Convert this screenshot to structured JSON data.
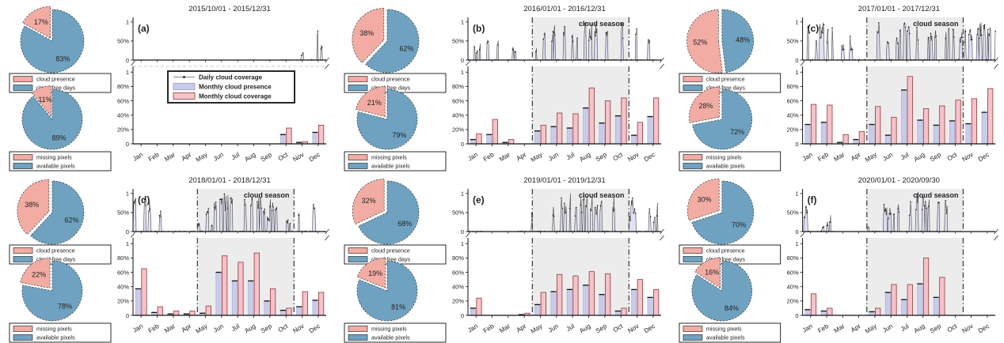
{
  "figure_name": "cloud coverage statistics figure",
  "colors": {
    "bar_presence_fill": "#c9cbe9",
    "bar_presence_edge": "#9aa0cc",
    "bar_presence_cap": "#111111",
    "bar_coverage_fill": "#f5c3c9",
    "bar_coverage_edge": "#9c4a4a",
    "pie_pink": "#f2aca3",
    "pie_blue": "#6fa2c0",
    "pie_outline": "#333333",
    "season_shade": "#ececec",
    "season_text": "#e8372e",
    "daily_line": "#3a3a3a",
    "daily_fill": "#d7d9f1",
    "axis": "#111111",
    "title_text": "#333333",
    "dashed_gap_line": "#c9c9c9"
  },
  "axes": {
    "y_ticks_top": [
      "1",
      "50%",
      "0"
    ],
    "y_ticks_bottom": [
      "1",
      "80%",
      "60%",
      "40%",
      "20%",
      "0"
    ],
    "cloud_season_label": "cloud season"
  },
  "main_legend": {
    "items": [
      {
        "type": "line",
        "label": "Daily cloud coverage"
      },
      {
        "type": "presence",
        "label": "Monthly cloud presence"
      },
      {
        "type": "coverage",
        "label": "Monthly cloud coverage"
      }
    ]
  },
  "pie_legends": {
    "cloud": [
      "cloud presence",
      "cloud-free days"
    ],
    "pixels": [
      "missing pixels",
      "available pixels"
    ]
  },
  "chart_data": [
    {
      "panel": "(a)",
      "title": "2015/10/01 - 2015/12/31",
      "type": "bar",
      "cloud_season": false,
      "daily_seed": 11,
      "pies": [
        {
          "name": "cloud",
          "slices": [
            {
              "label": "cloud presence",
              "value": 17
            },
            {
              "label": "cloud-free days",
              "value": 83
            }
          ]
        },
        {
          "name": "pixels",
          "slices": [
            {
              "label": "missing pixels",
              "value": 11
            },
            {
              "label": "available pixels",
              "value": 89
            }
          ]
        }
      ],
      "monthly": {
        "categories": [
          "Jan",
          "Feb",
          "Mar",
          "Apr",
          "May",
          "Jun",
          "Jul",
          "Aug",
          "Sep",
          "Oct",
          "Nov",
          "Dec"
        ],
        "series": [
          {
            "name": "Monthly cloud presence",
            "values": [
              0,
              0,
              0,
              0,
              0,
              0,
              0,
              0,
              0,
              13,
              2,
              16
            ]
          },
          {
            "name": "Monthly cloud coverage",
            "values": [
              0,
              0,
              0,
              0,
              0,
              0,
              0,
              0,
              0,
              22,
              3,
              26
            ]
          }
        ],
        "ylim": [
          0,
          1
        ]
      }
    },
    {
      "panel": "(b)",
      "title": "2016/01/01 - 2016/12/31",
      "type": "bar",
      "cloud_season": true,
      "cloud_season_months": [
        "May",
        "Oct"
      ],
      "daily_seed": 22,
      "pies": [
        {
          "name": "cloud",
          "slices": [
            {
              "label": "cloud presence",
              "value": 38
            },
            {
              "label": "cloud-free days",
              "value": 62
            }
          ]
        },
        {
          "name": "pixels",
          "slices": [
            {
              "label": "missing pixels",
              "value": 21
            },
            {
              "label": "available pixels",
              "value": 79
            }
          ]
        }
      ],
      "monthly": {
        "categories": [
          "Jan",
          "Feb",
          "Mar",
          "Apr",
          "May",
          "Jun",
          "Jul",
          "Aug",
          "Sep",
          "Oct",
          "Nov",
          "Dec"
        ],
        "series": [
          {
            "name": "Monthly cloud presence",
            "values": [
              6,
              13,
              2,
              0,
              18,
              24,
              22,
              50,
              29,
              39,
              12,
              38
            ]
          },
          {
            "name": "Monthly cloud coverage",
            "values": [
              14,
              34,
              6,
              0,
              26,
              43,
              42,
              78,
              60,
              64,
              30,
              64
            ]
          }
        ],
        "ylim": [
          0,
          1
        ]
      }
    },
    {
      "panel": "(c)",
      "title": "2017/01/01 - 2017/12/31",
      "type": "bar",
      "cloud_season": true,
      "cloud_season_months": [
        "May",
        "Oct"
      ],
      "daily_seed": 33,
      "pies": [
        {
          "name": "cloud",
          "slices": [
            {
              "label": "cloud presence",
              "value": 52
            },
            {
              "label": "cloud-free days",
              "value": 48
            }
          ]
        },
        {
          "name": "pixels",
          "slices": [
            {
              "label": "missing pixels",
              "value": 28
            },
            {
              "label": "available pixels",
              "value": 72
            }
          ]
        }
      ],
      "monthly": {
        "categories": [
          "Jan",
          "Feb",
          "Mar",
          "Apr",
          "May",
          "Jun",
          "Jul",
          "Aug",
          "Sep",
          "Oct",
          "Nov",
          "Dec"
        ],
        "series": [
          {
            "name": "Monthly cloud presence",
            "values": [
              27,
              30,
              2,
              6,
              27,
              12,
              75,
              33,
              26,
              32,
              28,
              44
            ]
          },
          {
            "name": "Monthly cloud coverage",
            "values": [
              55,
              54,
              13,
              17,
              52,
              37,
              94,
              49,
              53,
              61,
              63,
              77
            ]
          }
        ],
        "ylim": [
          0,
          1
        ]
      }
    },
    {
      "panel": "(d)",
      "title": "2018/01/01 - 2018/12/31",
      "type": "bar",
      "cloud_season": true,
      "cloud_season_months": [
        "May",
        "Oct"
      ],
      "daily_seed": 44,
      "pies": [
        {
          "name": "cloud",
          "slices": [
            {
              "label": "cloud presence",
              "value": 38
            },
            {
              "label": "cloud-free days",
              "value": 62
            }
          ]
        },
        {
          "name": "pixels",
          "slices": [
            {
              "label": "missing pixels",
              "value": 22
            },
            {
              "label": "available pixels",
              "value": 78
            }
          ]
        }
      ],
      "monthly": {
        "categories": [
          "Jan",
          "Feb",
          "Mar",
          "Apr",
          "May",
          "Jun",
          "Jul",
          "Aug",
          "Sep",
          "Oct",
          "Nov",
          "Dec"
        ],
        "series": [
          {
            "name": "Monthly cloud presence",
            "values": [
              37,
              4,
              2,
              2,
              3,
              60,
              48,
              48,
              20,
              7,
              12,
              21
            ]
          },
          {
            "name": "Monthly cloud coverage",
            "values": [
              65,
              12,
              6,
              6,
              13,
              83,
              74,
              87,
              37,
              10,
              33,
              32
            ]
          }
        ],
        "ylim": [
          0,
          1
        ]
      }
    },
    {
      "panel": "(e)",
      "title": "2019/01/01 - 2019/12/31",
      "type": "bar",
      "cloud_season": true,
      "cloud_season_months": [
        "May",
        "Oct"
      ],
      "daily_seed": 55,
      "pies": [
        {
          "name": "cloud",
          "slices": [
            {
              "label": "cloud presence",
              "value": 32
            },
            {
              "label": "cloud-free days",
              "value": 68
            }
          ]
        },
        {
          "name": "pixels",
          "slices": [
            {
              "label": "missing pixels",
              "value": 19
            },
            {
              "label": "available pixels",
              "value": 81
            }
          ]
        }
      ],
      "monthly": {
        "categories": [
          "Jan",
          "Feb",
          "Mar",
          "Apr",
          "May",
          "Jun",
          "Jul",
          "Aug",
          "Sep",
          "Oct",
          "Nov",
          "Dec"
        ],
        "series": [
          {
            "name": "Monthly cloud presence",
            "values": [
              10,
              0,
              0,
              1,
              15,
              33,
              36,
              42,
              29,
              6,
              36,
              25
            ]
          },
          {
            "name": "Monthly cloud coverage",
            "values": [
              24,
              0,
              0,
              3,
              32,
              57,
              55,
              61,
              58,
              10,
              50,
              36
            ]
          }
        ],
        "ylim": [
          0,
          1
        ]
      }
    },
    {
      "panel": "(f)",
      "title": "2020/01/01 - 2020/09/30",
      "type": "bar",
      "cloud_season": true,
      "cloud_season_months": [
        "May",
        "Oct"
      ],
      "daily_seed": 66,
      "pies": [
        {
          "name": "cloud",
          "slices": [
            {
              "label": "cloud presence",
              "value": 30
            },
            {
              "label": "cloud-free days",
              "value": 70
            }
          ]
        },
        {
          "name": "pixels",
          "slices": [
            {
              "label": "missing pixels",
              "value": 16
            },
            {
              "label": "available pixels",
              "value": 84
            }
          ]
        }
      ],
      "monthly": {
        "categories": [
          "Jan",
          "Feb",
          "Mar",
          "Apr",
          "May",
          "Jun",
          "Jul",
          "Aug",
          "Sep",
          "Oct",
          "Nov",
          "Dec"
        ],
        "series": [
          {
            "name": "Monthly cloud presence",
            "values": [
              8,
              6,
              0,
              0,
              5,
              32,
              22,
              44,
              25,
              0,
              0,
              0
            ]
          },
          {
            "name": "Monthly cloud coverage",
            "values": [
              30,
              10,
              0,
              0,
              10,
              43,
              43,
              80,
              53,
              0,
              0,
              0
            ]
          }
        ],
        "ylim": [
          0,
          1
        ]
      }
    }
  ]
}
